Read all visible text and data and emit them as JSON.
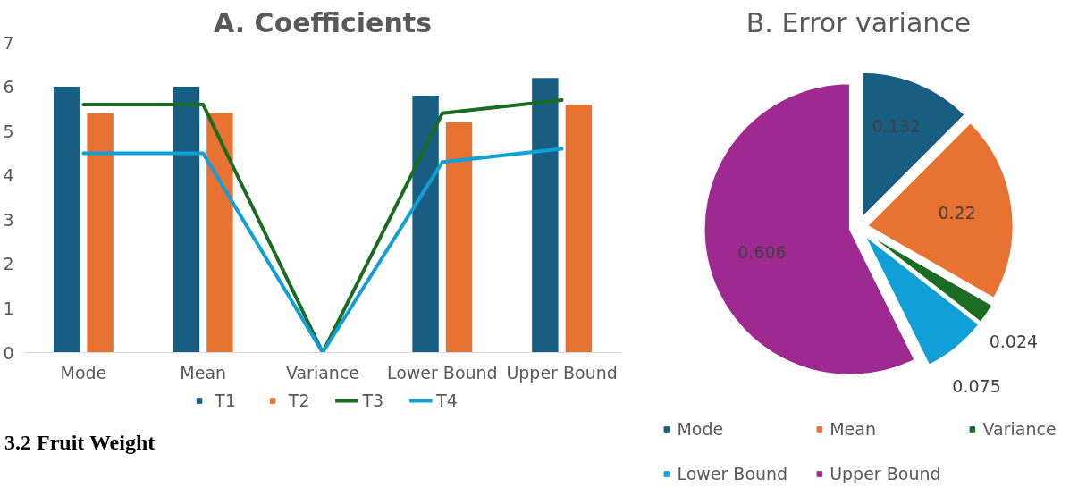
{
  "chart_data": [
    {
      "type": "bar",
      "title": "A. Coefficients",
      "categories": [
        "Mode",
        "Mean",
        "Variance",
        "Lower Bound",
        "Upper Bound"
      ],
      "series": [
        {
          "name": "T1",
          "color": "#175e82",
          "values": [
            6.0,
            6.0,
            0,
            5.8,
            6.2
          ]
        },
        {
          "name": "T2",
          "color": "#e87232",
          "values": [
            5.4,
            5.4,
            0,
            5.2,
            5.6
          ]
        },
        {
          "name": "T3",
          "type": "line",
          "color": "#1b6b22",
          "values": [
            5.6,
            5.6,
            0,
            5.4,
            5.7
          ]
        },
        {
          "name": "T4",
          "type": "line",
          "color": "#109fd6",
          "values": [
            4.5,
            4.5,
            0,
            4.3,
            4.6
          ]
        }
      ],
      "ylim": [
        0,
        7
      ],
      "yticks": [
        0,
        1,
        2,
        3,
        4,
        5,
        6,
        7
      ],
      "grid": false,
      "legend": "bottom",
      "annotations": [
        "3.2 Fruit Weight"
      ]
    },
    {
      "type": "pie",
      "title": "B. Error variance",
      "categories": [
        "Mode",
        "Mean",
        "Variance",
        "Lower Bound",
        "Upper Bound"
      ],
      "values": [
        0.132,
        0.22,
        0.024,
        0.075,
        0.606
      ],
      "colors": [
        "#175e82",
        "#e87232",
        "#1b6b22",
        "#109fd6",
        "#9e2a91"
      ],
      "data_labels": true,
      "legend": "bottom"
    }
  ]
}
